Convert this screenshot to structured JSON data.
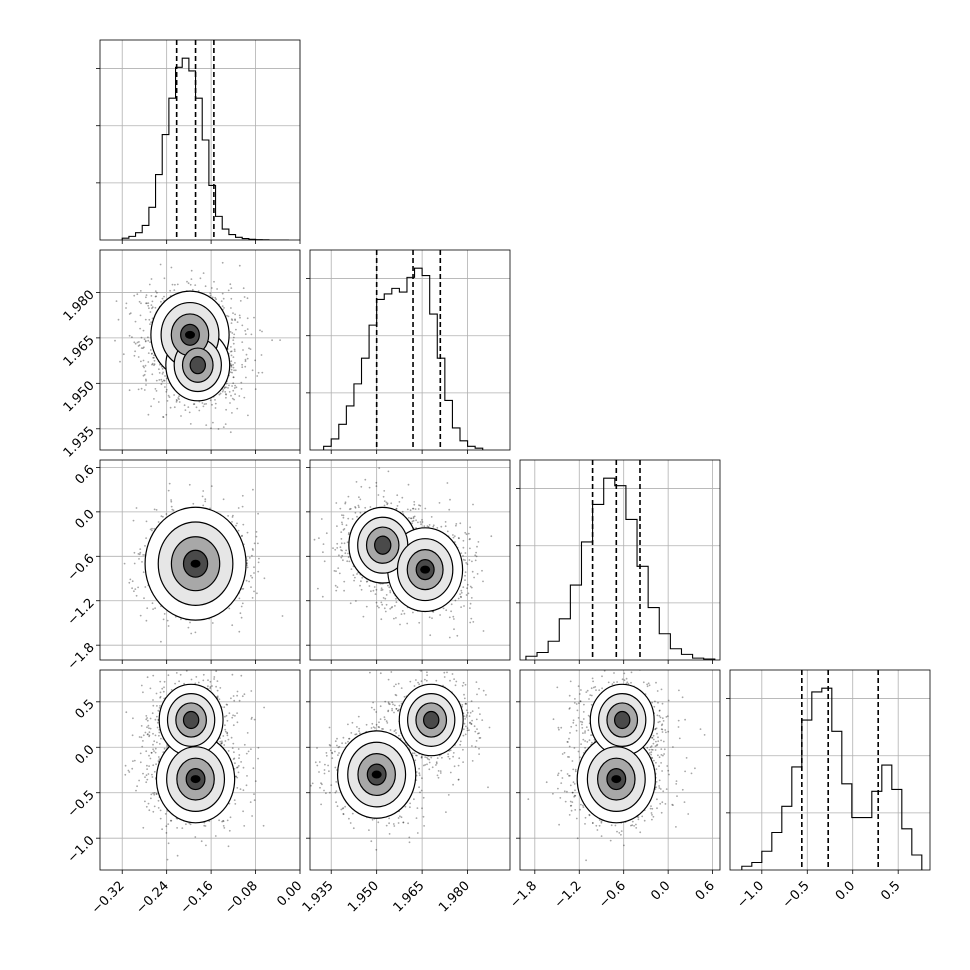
{
  "chart_data": {
    "type": "corner",
    "title": "",
    "n_params": 4,
    "params": [
      {
        "range": [
          -0.36,
          0.0
        ],
        "ticks": [
          -0.32,
          -0.24,
          -0.16,
          -0.08,
          0.0
        ],
        "tick_labels": [
          "−0.32",
          "−0.24",
          "−0.16",
          "−0.08",
          "0.00"
        ],
        "quantiles": [
          -0.222,
          -0.188,
          -0.155
        ],
        "hist": {
          "bins": [
            -0.32,
            -0.308,
            -0.296,
            -0.284,
            -0.272,
            -0.26,
            -0.248,
            -0.236,
            -0.224,
            -0.212,
            -0.2,
            -0.188,
            -0.176,
            -0.164,
            -0.152,
            -0.14,
            -0.128,
            -0.116,
            -0.104,
            -0.092,
            -0.08,
            -0.068,
            -0.056,
            -0.044,
            -0.032,
            -0.02
          ],
          "counts": [
            0.01,
            0.02,
            0.04,
            0.08,
            0.18,
            0.36,
            0.58,
            0.78,
            0.95,
            1.0,
            0.93,
            0.78,
            0.55,
            0.3,
            0.13,
            0.06,
            0.03,
            0.015,
            0.008,
            0.004,
            0.002,
            0.001,
            0.0,
            0.0,
            0.0
          ]
        }
      },
      {
        "range": [
          1.928,
          1.994
        ],
        "ticks": [
          1.935,
          1.95,
          1.965,
          1.98
        ],
        "tick_labels": [
          "1.935",
          "1.950",
          "1.965",
          "1.980"
        ],
        "quantiles": [
          1.95,
          1.962,
          1.971
        ],
        "hist": {
          "bins": [
            1.9325,
            1.935,
            1.9375,
            1.94,
            1.9425,
            1.945,
            1.9475,
            1.95,
            1.9525,
            1.955,
            1.9575,
            1.96,
            1.9625,
            1.965,
            1.9675,
            1.97,
            1.9725,
            1.975,
            1.9775,
            1.98,
            1.9825,
            1.985
          ],
          "counts": [
            0.02,
            0.06,
            0.14,
            0.24,
            0.36,
            0.5,
            0.68,
            0.82,
            0.85,
            0.88,
            0.86,
            0.94,
            0.99,
            0.95,
            0.74,
            0.5,
            0.27,
            0.12,
            0.05,
            0.02,
            0.01
          ]
        }
      },
      {
        "range": [
          -2.0,
          0.7
        ],
        "ticks": [
          -1.8,
          -1.2,
          -0.6,
          0.0,
          0.6
        ],
        "tick_labels": [
          "−1.8",
          "−1.2",
          "−0.6",
          "0.0",
          "0.6"
        ],
        "quantiles": [
          -1.02,
          -0.7,
          -0.38
        ],
        "hist": {
          "bins": [
            -1.92,
            -1.77,
            -1.62,
            -1.47,
            -1.32,
            -1.17,
            -1.02,
            -0.87,
            -0.72,
            -0.57,
            -0.42,
            -0.27,
            -0.12,
            0.03,
            0.18,
            0.33,
            0.48,
            0.63
          ],
          "counts": [
            0.02,
            0.04,
            0.1,
            0.22,
            0.4,
            0.63,
            0.83,
            0.97,
            0.93,
            0.75,
            0.5,
            0.28,
            0.14,
            0.06,
            0.03,
            0.01,
            0.005
          ]
        }
      },
      {
        "range": [
          -1.35,
          0.85
        ],
        "ticks": [
          -1.0,
          -0.5,
          0.0,
          0.5
        ],
        "tick_labels": [
          "−1.0",
          "−0.5",
          "0.0",
          "0.5"
        ],
        "quantiles": [
          -0.56,
          -0.27,
          0.28
        ],
        "hist": {
          "bins": [
            -1.22,
            -1.11,
            -1.0,
            -0.89,
            -0.78,
            -0.67,
            -0.56,
            -0.45,
            -0.34,
            -0.23,
            -0.12,
            -0.01,
            0.1,
            0.21,
            0.32,
            0.43,
            0.54,
            0.65,
            0.76
          ],
          "counts": [
            0.02,
            0.04,
            0.1,
            0.2,
            0.34,
            0.55,
            0.8,
            0.95,
            0.97,
            0.74,
            0.46,
            0.28,
            0.28,
            0.42,
            0.56,
            0.43,
            0.22,
            0.08
          ]
        }
      }
    ],
    "pairs": [
      {
        "row": 1,
        "col": 0,
        "modes": [
          {
            "x": -0.198,
            "y": 1.966,
            "w": 0.6
          },
          {
            "x": -0.184,
            "y": 1.956,
            "w": 0.4
          }
        ],
        "contour_peak": [
          -0.188,
          1.966
        ]
      },
      {
        "row": 2,
        "col": 0,
        "modes": [
          {
            "x": -0.188,
            "y": -0.7,
            "w": 1.0
          }
        ],
        "contour_peak": [
          -0.188,
          -0.7
        ]
      },
      {
        "row": 2,
        "col": 1,
        "modes": [
          {
            "x": 1.952,
            "y": -0.45,
            "w": 0.45
          },
          {
            "x": 1.966,
            "y": -0.78,
            "w": 0.55
          }
        ],
        "contour_peak": [
          1.966,
          -0.78
        ]
      },
      {
        "row": 3,
        "col": 0,
        "modes": [
          {
            "x": -0.188,
            "y": -0.35,
            "w": 0.6
          },
          {
            "x": -0.196,
            "y": 0.3,
            "w": 0.4
          }
        ],
        "contour_peak": [
          -0.188,
          -0.35
        ]
      },
      {
        "row": 3,
        "col": 1,
        "modes": [
          {
            "x": 1.95,
            "y": -0.3,
            "w": 0.6
          },
          {
            "x": 1.968,
            "y": 0.3,
            "w": 0.4
          }
        ],
        "contour_peak": [
          1.968,
          0.3
        ]
      },
      {
        "row": 3,
        "col": 2,
        "modes": [
          {
            "x": -0.7,
            "y": -0.35,
            "w": 0.6
          },
          {
            "x": -0.62,
            "y": 0.3,
            "w": 0.4
          }
        ],
        "contour_peak": [
          -0.7,
          -0.35
        ]
      }
    ],
    "grid": true,
    "legend": "none"
  }
}
